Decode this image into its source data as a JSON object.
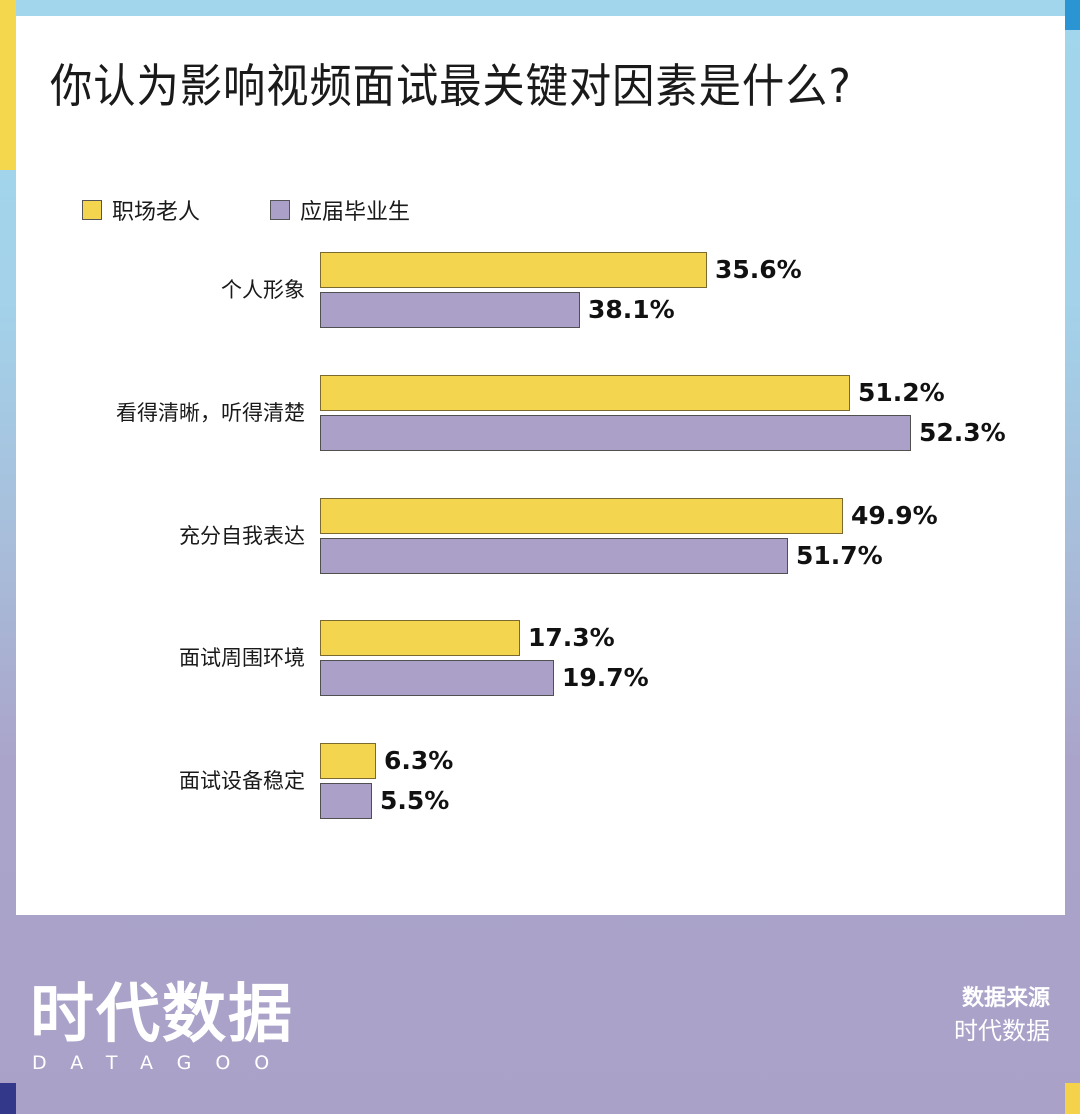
{
  "title": "你认为影响视频面试最关键对因素是什么?",
  "colors": {
    "series_1": "#f4d54f",
    "series_2": "#aaa0c8",
    "frame_top": "#a1d6ec",
    "frame_bottom": "#aaa1c8",
    "accent_blue": "#2a95d2",
    "accent_navy": "#33388a"
  },
  "legend": [
    {
      "label": "职场老人",
      "color": "#f4d54f"
    },
    {
      "label": "应届毕业生",
      "color": "#aaa0c8"
    }
  ],
  "rows": [
    {
      "label": "个人形象",
      "v1": "35.6%",
      "v2": "38.1%",
      "w1": 387,
      "w2": 260
    },
    {
      "label": "看得清晰，听得清楚",
      "v1": "51.2%",
      "v2": "52.3%",
      "w1": 530,
      "w2": 591
    },
    {
      "label": "充分自我表达",
      "v1": "49.9%",
      "v2": "51.7%",
      "w1": 523,
      "w2": 468
    },
    {
      "label": "面试周围环境",
      "v1": "17.3%",
      "v2": "19.7%",
      "w1": 200,
      "w2": 234
    },
    {
      "label": "面试设备稳定",
      "v1": "6.3%",
      "v2": "5.5%",
      "w1": 56,
      "w2": 52
    }
  ],
  "footer": {
    "logo_cn": "时代数据",
    "logo_en": "DATAGOO",
    "source_label": "数据来源",
    "source_value": "时代数据"
  },
  "chart_data": {
    "type": "bar",
    "orientation": "horizontal",
    "title": "你认为影响视频面试最关键对因素是什么?",
    "categories": [
      "个人形象",
      "看得清晰，听得清楚",
      "充分自我表达",
      "面试周围环境",
      "面试设备稳定"
    ],
    "series": [
      {
        "name": "职场老人",
        "color": "#f4d54f",
        "values": [
          35.6,
          51.2,
          49.9,
          17.3,
          6.3
        ]
      },
      {
        "name": "应届毕业生",
        "color": "#aaa0c8",
        "values": [
          38.1,
          52.3,
          51.7,
          19.7,
          5.5
        ]
      }
    ],
    "unit": "%",
    "data_labels": true,
    "xlabel": "",
    "ylabel": "",
    "grid": false,
    "legend_position": "top-left",
    "source": "时代数据"
  }
}
